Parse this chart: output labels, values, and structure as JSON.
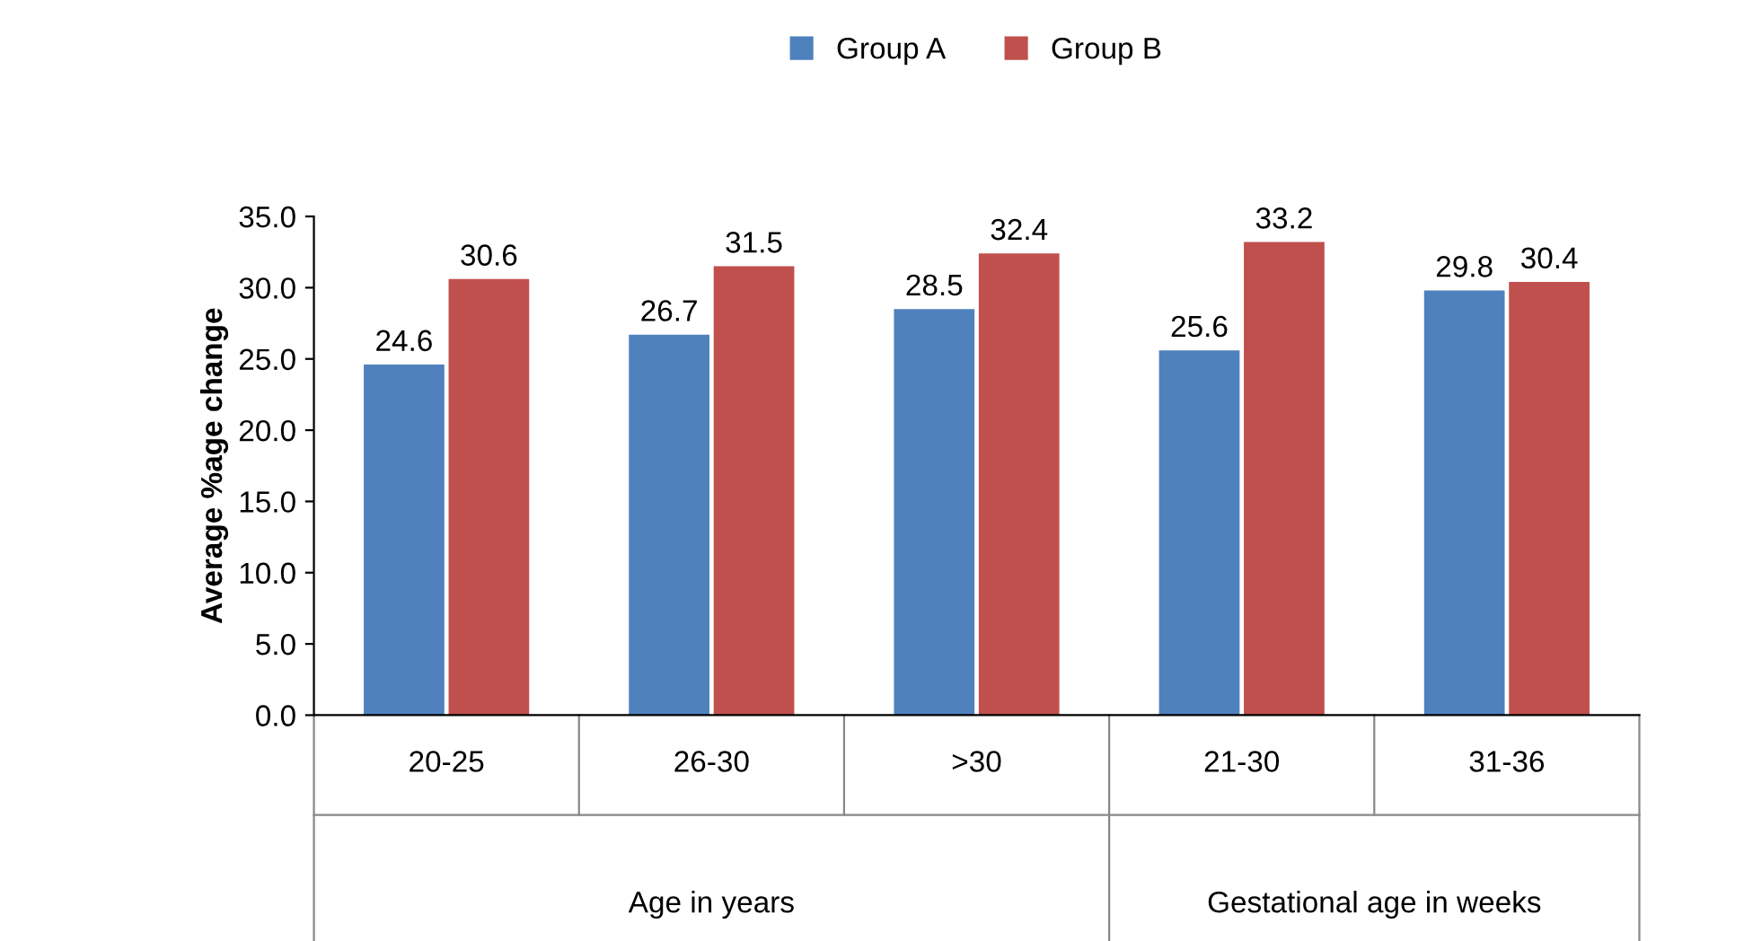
{
  "chart_data": {
    "type": "bar",
    "ylabel": "Average %age change",
    "categories": [
      "20-25",
      "26-30",
      ">30",
      "21-30",
      "31-36"
    ],
    "series": [
      {
        "name": "Group A",
        "color": "#4f81bd",
        "values": [
          24.6,
          26.7,
          28.5,
          25.6,
          29.8
        ]
      },
      {
        "name": "Group B",
        "color": "#c0504d",
        "values": [
          30.6,
          31.5,
          32.4,
          33.2,
          30.4
        ]
      }
    ],
    "ylim": [
      0,
      35
    ],
    "yticks": [
      {
        "value": 0,
        "label": "0.0"
      },
      {
        "value": 5,
        "label": "5.0"
      },
      {
        "value": 10,
        "label": "10.0"
      },
      {
        "value": 15,
        "label": "15.0"
      },
      {
        "value": 20,
        "label": "20.0"
      },
      {
        "value": 25,
        "label": "25.0"
      },
      {
        "value": 30,
        "label": "30.0"
      },
      {
        "value": 35,
        "label": "35.0"
      }
    ],
    "annotations": [
      "Age in years",
      "Gestational age in weeks"
    ],
    "data_labels": true,
    "legend": "top",
    "grid": false
  }
}
